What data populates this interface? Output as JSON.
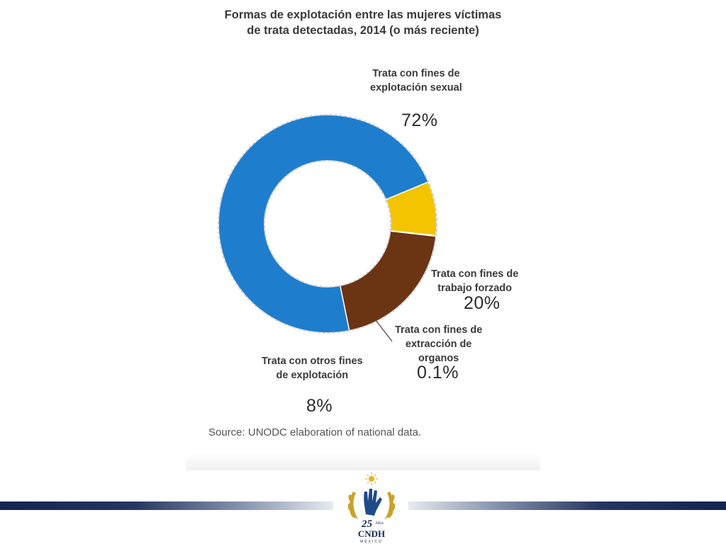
{
  "chart_data": {
    "type": "pie",
    "title_lines": [
      "Formas de explotación entre las mujeres víctimas",
      "de trata detectadas, 2014 (o más reciente)"
    ],
    "slices": [
      {
        "label_lines": [
          "Trata con fines de",
          "explotación sexual"
        ],
        "value_label": "72%",
        "value": 72,
        "color": "#1e7dcd"
      },
      {
        "label_lines": [
          "Trata con fines de",
          "trabajo forzado"
        ],
        "value_label": "20%",
        "value": 20,
        "color": "#6b3413"
      },
      {
        "label_lines": [
          "Trata con fines de",
          "extracción de",
          "organos"
        ],
        "value_label": "0.1%",
        "value": 0.1,
        "color": "#e9e9e9"
      },
      {
        "label_lines": [
          "Trata con otros fines",
          "de explotación"
        ],
        "value_label": "8%",
        "value": 8,
        "color": "#f5c400"
      }
    ],
    "source": "Source: UNODC elaboration of national data."
  },
  "footer": {
    "logo_years": "25",
    "logo_years_word": "Años",
    "logo_name": "CNDH",
    "logo_country": "MÉXICO",
    "stripe_color": "#15244f",
    "laurel_color": "#c9a227",
    "hand_color": "#1f4a8a"
  }
}
